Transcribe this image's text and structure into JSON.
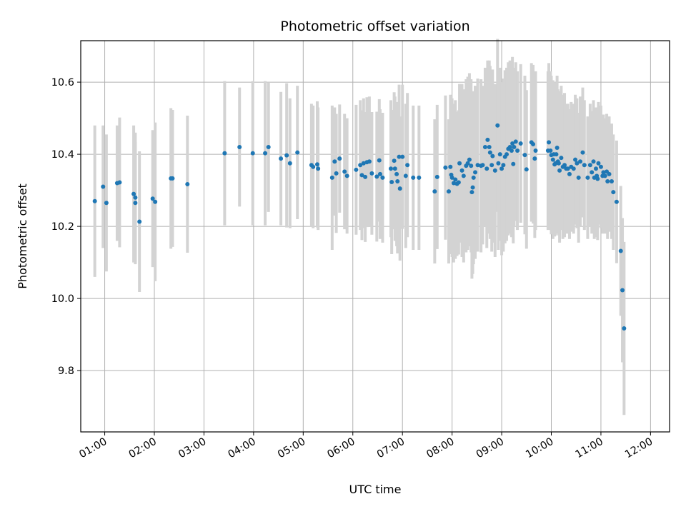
{
  "chart_data": {
    "type": "scatter",
    "title": "Photometric offset variation",
    "xlabel": "UTC time",
    "ylabel": "Photometric offset",
    "grid": true,
    "xlim": [
      "00:31",
      "12:23"
    ],
    "ylim": [
      9.63,
      10.715
    ],
    "x_ticks": [
      "01:00",
      "02:00",
      "03:00",
      "04:00",
      "05:00",
      "06:00",
      "07:00",
      "08:00",
      "09:00",
      "10:00",
      "11:00",
      "12:00"
    ],
    "y_ticks": [
      9.8,
      10.0,
      10.2,
      10.4,
      10.6
    ],
    "y_tick_labels": [
      "9.8",
      "10.0",
      "10.2",
      "10.4",
      "10.6"
    ],
    "colors": {
      "marker": "#1f77b4",
      "errorbar": "#d3d3d3",
      "grid": "#b0b0b0"
    },
    "series": [
      {
        "points": [
          [
            "00:48",
            10.27,
            0.21
          ],
          [
            "00:58",
            10.31,
            0.17
          ],
          [
            "01:02",
            10.265,
            0.19
          ],
          [
            "01:15",
            10.32,
            0.16
          ],
          [
            "01:18",
            10.322,
            0.18
          ],
          [
            "01:35",
            10.29,
            0.19
          ],
          [
            "01:37",
            10.28,
            0.18
          ],
          [
            "01:37",
            10.265,
            0.17
          ],
          [
            "01:42",
            10.213,
            0.195
          ],
          [
            "01:58",
            10.277,
            0.19
          ],
          [
            "02:01",
            10.268,
            0.22
          ],
          [
            "02:20",
            10.333,
            0.195
          ],
          [
            "02:22",
            10.333,
            0.19
          ],
          [
            "02:40",
            10.317,
            0.19
          ],
          [
            "03:25",
            10.403,
            0.2
          ],
          [
            "03:43",
            10.42,
            0.165
          ],
          [
            "03:59",
            10.403,
            0.2
          ],
          [
            "04:14",
            10.403,
            0.2
          ],
          [
            "04:18",
            10.42,
            0.18
          ],
          [
            "04:33",
            10.388,
            0.185
          ],
          [
            "04:40",
            10.397,
            0.2
          ],
          [
            "04:44",
            10.375,
            0.18
          ],
          [
            "04:53",
            10.405,
            0.185
          ],
          [
            "05:10",
            10.37,
            0.17
          ],
          [
            "05:12",
            10.365,
            0.17
          ],
          [
            "05:17",
            10.372,
            0.175
          ],
          [
            "05:18",
            10.36,
            0.17
          ],
          [
            "05:35",
            10.335,
            0.2
          ],
          [
            "05:38",
            10.38,
            0.15
          ],
          [
            "05:40",
            10.347,
            0.165
          ],
          [
            "05:44",
            10.388,
            0.15
          ],
          [
            "05:50",
            10.352,
            0.16
          ],
          [
            "05:53",
            10.34,
            0.16
          ],
          [
            "06:04",
            10.357,
            0.18
          ],
          [
            "06:09",
            10.37,
            0.18
          ],
          [
            "06:11",
            10.342,
            0.18
          ],
          [
            "06:13",
            10.375,
            0.18
          ],
          [
            "06:15",
            10.337,
            0.18
          ],
          [
            "06:17",
            10.378,
            0.18
          ],
          [
            "06:20",
            10.38,
            0.18
          ],
          [
            "06:23",
            10.347,
            0.17
          ],
          [
            "06:29",
            10.338,
            0.18
          ],
          [
            "06:32",
            10.383,
            0.17
          ],
          [
            "06:33",
            10.345,
            0.18
          ],
          [
            "06:36",
            10.335,
            0.18
          ],
          [
            "06:46",
            10.36,
            0.19
          ],
          [
            "06:47",
            10.323,
            0.2
          ],
          [
            "06:50",
            10.382,
            0.19
          ],
          [
            "06:51",
            10.36,
            0.2
          ],
          [
            "06:53",
            10.345,
            0.2
          ],
          [
            "06:54",
            10.325,
            0.2
          ],
          [
            "06:56",
            10.393,
            0.2
          ],
          [
            "06:57",
            10.305,
            0.2
          ],
          [
            "07:00",
            10.393,
            0.2
          ],
          [
            "07:04",
            10.34,
            0.2
          ],
          [
            "07:06",
            10.37,
            0.2
          ],
          [
            "07:13",
            10.335,
            0.2
          ],
          [
            "07:20",
            10.335,
            0.2
          ],
          [
            "07:39",
            10.297,
            0.2
          ],
          [
            "07:42",
            10.337,
            0.2
          ],
          [
            "07:52",
            10.363,
            0.2
          ],
          [
            "07:56",
            10.297,
            0.2
          ],
          [
            "07:58",
            10.365,
            0.2
          ],
          [
            "07:59",
            10.343,
            0.22
          ],
          [
            "08:00",
            10.335,
            0.22
          ],
          [
            "08:02",
            10.32,
            0.22
          ],
          [
            "08:04",
            10.33,
            0.22
          ],
          [
            "08:06",
            10.318,
            0.2
          ],
          [
            "08:08",
            10.322,
            0.2
          ],
          [
            "08:09",
            10.375,
            0.22
          ],
          [
            "08:12",
            10.355,
            0.24
          ],
          [
            "08:14",
            10.34,
            0.24
          ],
          [
            "08:17",
            10.368,
            0.24
          ],
          [
            "08:19",
            10.375,
            0.24
          ],
          [
            "08:21",
            10.385,
            0.24
          ],
          [
            "08:23",
            10.368,
            0.24
          ],
          [
            "08:24",
            10.295,
            0.24
          ],
          [
            "08:25",
            10.308,
            0.24
          ],
          [
            "08:26",
            10.335,
            0.24
          ],
          [
            "08:28",
            10.35,
            0.24
          ],
          [
            "08:31",
            10.37,
            0.24
          ],
          [
            "08:35",
            10.368,
            0.24
          ],
          [
            "08:37",
            10.37,
            0.22
          ],
          [
            "08:40",
            10.42,
            0.22
          ],
          [
            "08:42",
            10.36,
            0.22
          ],
          [
            "08:43",
            10.44,
            0.22
          ],
          [
            "08:45",
            10.42,
            0.24
          ],
          [
            "08:46",
            10.405,
            0.24
          ],
          [
            "08:48",
            10.37,
            0.24
          ],
          [
            "08:49",
            10.395,
            0.24
          ],
          [
            "08:52",
            10.355,
            0.24
          ],
          [
            "08:55",
            10.48,
            0.24
          ],
          [
            "08:56",
            10.375,
            0.24
          ],
          [
            "08:58",
            10.4,
            0.24
          ],
          [
            "09:00",
            10.36,
            0.24
          ],
          [
            "09:02",
            10.37,
            0.24
          ],
          [
            "09:04",
            10.393,
            0.24
          ],
          [
            "09:06",
            10.4,
            0.24
          ],
          [
            "09:08",
            10.415,
            0.24
          ],
          [
            "09:10",
            10.42,
            0.24
          ],
          [
            "09:12",
            10.41,
            0.24
          ],
          [
            "09:13",
            10.43,
            0.24
          ],
          [
            "09:14",
            10.373,
            0.22
          ],
          [
            "09:15",
            10.42,
            0.22
          ],
          [
            "09:17",
            10.435,
            0.22
          ],
          [
            "09:19",
            10.41,
            0.22
          ],
          [
            "09:23",
            10.43,
            0.22
          ],
          [
            "09:28",
            10.398,
            0.22
          ],
          [
            "09:30",
            10.358,
            0.22
          ],
          [
            "09:36",
            10.433,
            0.22
          ],
          [
            "09:38",
            10.428,
            0.22
          ],
          [
            "09:40",
            10.388,
            0.22
          ],
          [
            "09:41",
            10.41,
            0.22
          ],
          [
            "09:56",
            10.41,
            0.22
          ],
          [
            "09:57",
            10.433,
            0.22
          ],
          [
            "09:59",
            10.41,
            0.22
          ],
          [
            "10:00",
            10.398,
            0.22
          ],
          [
            "10:02",
            10.385,
            0.22
          ],
          [
            "10:03",
            10.4,
            0.2
          ],
          [
            "10:04",
            10.372,
            0.2
          ],
          [
            "10:05",
            10.375,
            0.2
          ],
          [
            "10:06",
            10.4,
            0.2
          ],
          [
            "10:07",
            10.418,
            0.2
          ],
          [
            "10:08",
            10.38,
            0.2
          ],
          [
            "10:09",
            10.375,
            0.2
          ],
          [
            "10:10",
            10.355,
            0.2
          ],
          [
            "10:12",
            10.39,
            0.2
          ],
          [
            "10:14",
            10.365,
            0.2
          ],
          [
            "10:16",
            10.37,
            0.2
          ],
          [
            "10:18",
            10.36,
            0.18
          ],
          [
            "10:20",
            10.36,
            0.18
          ],
          [
            "10:22",
            10.345,
            0.18
          ],
          [
            "10:24",
            10.365,
            0.18
          ],
          [
            "10:27",
            10.36,
            0.18
          ],
          [
            "10:29",
            10.385,
            0.18
          ],
          [
            "10:31",
            10.375,
            0.18
          ],
          [
            "10:33",
            10.335,
            0.18
          ],
          [
            "10:35",
            10.38,
            0.18
          ],
          [
            "10:38",
            10.405,
            0.18
          ],
          [
            "10:40",
            10.37,
            0.18
          ],
          [
            "10:44",
            10.335,
            0.17
          ],
          [
            "10:47",
            10.37,
            0.17
          ],
          [
            "10:49",
            10.35,
            0.17
          ],
          [
            "10:51",
            10.38,
            0.17
          ],
          [
            "10:52",
            10.335,
            0.17
          ],
          [
            "10:54",
            10.36,
            0.17
          ],
          [
            "10:55",
            10.34,
            0.17
          ],
          [
            "10:56",
            10.332,
            0.17
          ],
          [
            "10:57",
            10.375,
            0.17
          ],
          [
            "11:00",
            10.365,
            0.17
          ],
          [
            "11:02",
            10.34,
            0.16
          ],
          [
            "11:03",
            10.35,
            0.16
          ],
          [
            "11:05",
            10.34,
            0.16
          ],
          [
            "11:07",
            10.352,
            0.16
          ],
          [
            "11:08",
            10.325,
            0.16
          ],
          [
            "11:10",
            10.345,
            0.16
          ],
          [
            "11:13",
            10.325,
            0.16
          ],
          [
            "11:15",
            10.295,
            0.16
          ],
          [
            "11:19",
            10.268,
            0.17
          ],
          [
            "11:24",
            10.132,
            0.18
          ],
          [
            "11:26",
            10.023,
            0.2
          ],
          [
            "11:28",
            9.917,
            0.24
          ]
        ]
      }
    ]
  }
}
